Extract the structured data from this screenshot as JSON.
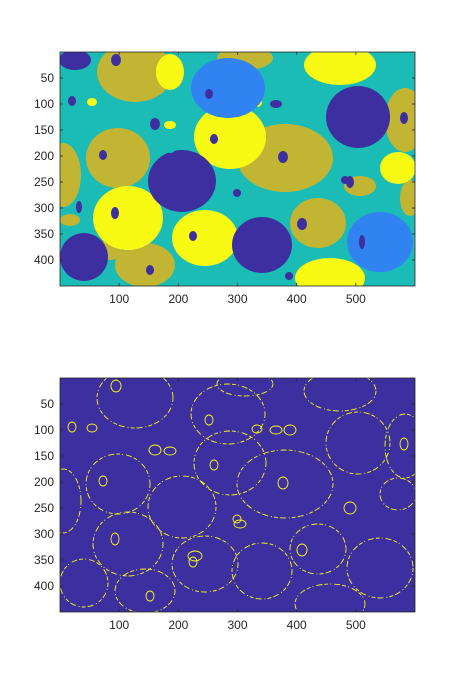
{
  "figure": {
    "colormap": {
      "c1": "#3d2fa0",
      "c2": "#3183f1",
      "c3": "#1bbcb6",
      "c4": "#c2b534",
      "c5": "#f8fa14"
    },
    "subplots": [
      {
        "name": "label-image-plot",
        "x_range": [
          0,
          600
        ],
        "y_range": [
          0,
          450
        ],
        "x_ticks": [
          "100",
          "200",
          "300",
          "400",
          "500"
        ],
        "y_ticks": [
          "50",
          "100",
          "150",
          "200",
          "250",
          "300",
          "350",
          "400"
        ],
        "x_tick_values": [
          100,
          200,
          300,
          400,
          500
        ],
        "y_tick_values": [
          50,
          100,
          150,
          200,
          250,
          300,
          350,
          400
        ],
        "background_color": "#1bbcb6"
      },
      {
        "name": "edge-image-plot",
        "x_range": [
          0,
          600
        ],
        "y_range": [
          0,
          450
        ],
        "x_ticks": [
          "100",
          "200",
          "300",
          "400",
          "500"
        ],
        "y_ticks": [
          "50",
          "100",
          "150",
          "200",
          "250",
          "300",
          "350",
          "400"
        ],
        "x_tick_values": [
          100,
          200,
          300,
          400,
          500
        ],
        "y_tick_values": [
          50,
          100,
          150,
          200,
          250,
          300,
          350,
          400
        ],
        "background_color": "#3d2fa0",
        "edge_color": "#f8fa14"
      }
    ]
  }
}
